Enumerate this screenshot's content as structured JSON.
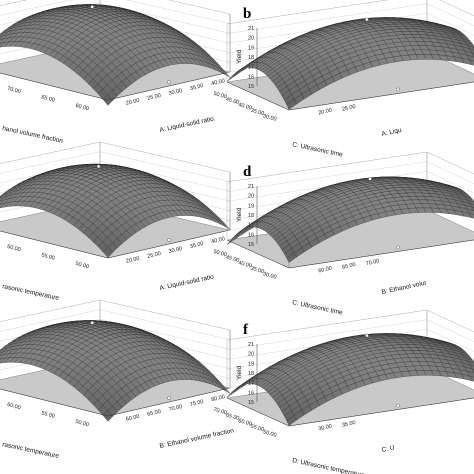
{
  "chart_data": [
    {
      "type": "surface",
      "letter": "",
      "zlabel": "",
      "ztick_labels": [],
      "x1": {
        "label": "A: Liquid-solid ratio",
        "ticks": [
          "20.00",
          "25.00",
          "30.00",
          "35.00",
          "40.00"
        ]
      },
      "x2": {
        "label": "hanol volume fraction",
        "ticks": [
          "60.00",
          "65.00",
          "70.00",
          "75.00"
        ]
      },
      "peak": [
        0.5,
        0.6
      ]
    },
    {
      "type": "surface",
      "letter": "b",
      "zlabel": "Yield",
      "ztick_labels": [
        "15",
        "16",
        "17",
        "18",
        "19",
        "20",
        "21"
      ],
      "x1": {
        "label": "A: Liqu",
        "ticks": [
          "20.00",
          "25.00"
        ]
      },
      "x2": {
        "label": "C: Ultrasonic time",
        "ticks": [
          "30.00",
          "35.00",
          "40.00",
          "45.00",
          "50.00"
        ]
      },
      "peak": [
        0.55,
        0.5
      ]
    },
    {
      "type": "surface",
      "letter": "",
      "zlabel": "",
      "ztick_labels": [],
      "x1": {
        "label": "A: Liquid-solid ratio",
        "ticks": [
          "20.00",
          "25.00",
          "30.00",
          "35.00",
          "40.00"
        ]
      },
      "x2": {
        "label": "rasonic temperature",
        "ticks": [
          "50.00",
          "55.00",
          "60.00",
          "65.00"
        ]
      },
      "peak": [
        0.5,
        0.55
      ]
    },
    {
      "type": "surface",
      "letter": "d",
      "zlabel": "Yield",
      "ztick_labels": [
        "15",
        "16",
        "17",
        "18",
        "19",
        "20",
        "21"
      ],
      "x1": {
        "label": "B: Ethanol volur",
        "ticks": [
          "60.00",
          "65.00",
          "70.00"
        ]
      },
      "x2": {
        "label": "C: Ultrasonic time",
        "ticks": [
          "30.00",
          "35.00",
          "40.00",
          "45.00",
          "50.00"
        ]
      },
      "peak": [
        0.55,
        0.45
      ]
    },
    {
      "type": "surface",
      "letter": "",
      "zlabel": "",
      "ztick_labels": [],
      "x1": {
        "label": "B: Ethanol volume fraction",
        "ticks": [
          "60.00",
          "65.00",
          "70.00",
          "75.00",
          "80.00"
        ]
      },
      "x2": {
        "label": "rasonic temperature",
        "ticks": [
          "50.00",
          "55.00",
          "60.00",
          "65.00"
        ]
      },
      "peak": [
        0.5,
        0.6
      ]
    },
    {
      "type": "surface",
      "letter": "f",
      "zlabel": "Yield",
      "ztick_labels": [
        "15",
        "16",
        "17",
        "18",
        "19",
        "20",
        "21"
      ],
      "x1": {
        "label": "C: U",
        "ticks": [
          "30.00",
          "35.00"
        ]
      },
      "x2": {
        "label": "D: Ultrasonic temperature",
        "ticks": [
          "50.00",
          "55.00",
          "60.00",
          "65.00",
          "70.00"
        ]
      },
      "peak": [
        0.55,
        0.5
      ]
    }
  ]
}
